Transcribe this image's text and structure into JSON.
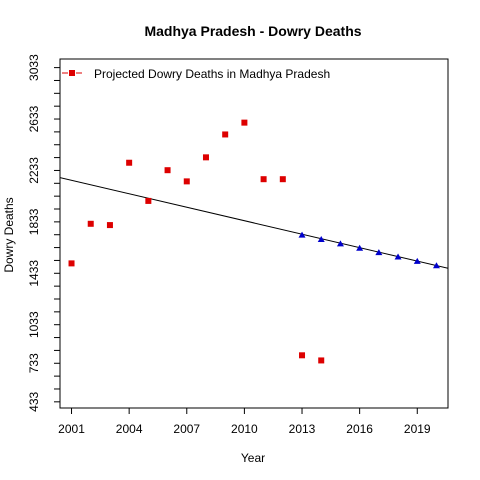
{
  "chart_data": {
    "type": "scatter",
    "title": "Madhya Pradesh  -  Dowry Deaths",
    "xlabel": "Year",
    "ylabel": "Dowry Deaths",
    "xlim": [
      2000.4,
      2020.6
    ],
    "ylim": [
      385,
      3100
    ],
    "x_ticks": [
      2001,
      2004,
      2007,
      2010,
      2013,
      2016,
      2019
    ],
    "y_ticks": [
      433,
      733,
      1033,
      1433,
      1833,
      2233,
      2633,
      3033
    ],
    "y_minor_ticks": [
      533,
      633,
      833,
      933,
      1133,
      1233,
      1333,
      1533,
      1633,
      1733,
      1933,
      2033,
      2133,
      2333,
      2433,
      2533,
      2733,
      2833,
      2933
    ],
    "legend": {
      "position": "top-left",
      "label": "Projected  Dowry Deaths  in  Madhya Pradesh"
    },
    "series": [
      {
        "color": "#dd0000",
        "marker": "square",
        "x": [
          2001,
          2002,
          2003,
          2004,
          2005,
          2006,
          2007,
          2008,
          2009,
          2010,
          2011,
          2012,
          2013,
          2014
        ],
        "y": [
          1510,
          1818,
          1808,
          2293,
          1996,
          2235,
          2148,
          2335,
          2513,
          2605,
          2165,
          2165,
          795,
          755
        ]
      },
      {
        "color": "#0000cc",
        "marker": "triangle",
        "x": [
          2013,
          2014,
          2015,
          2016,
          2017,
          2018,
          2019,
          2020
        ],
        "y": [
          1730,
          1696,
          1662,
          1628,
          1594,
          1560,
          1526,
          1492
        ]
      }
    ],
    "trend_line": {
      "color": "#000000",
      "x": [
        2000.4,
        2020.6
      ],
      "y": [
        2177,
        1472
      ]
    }
  }
}
